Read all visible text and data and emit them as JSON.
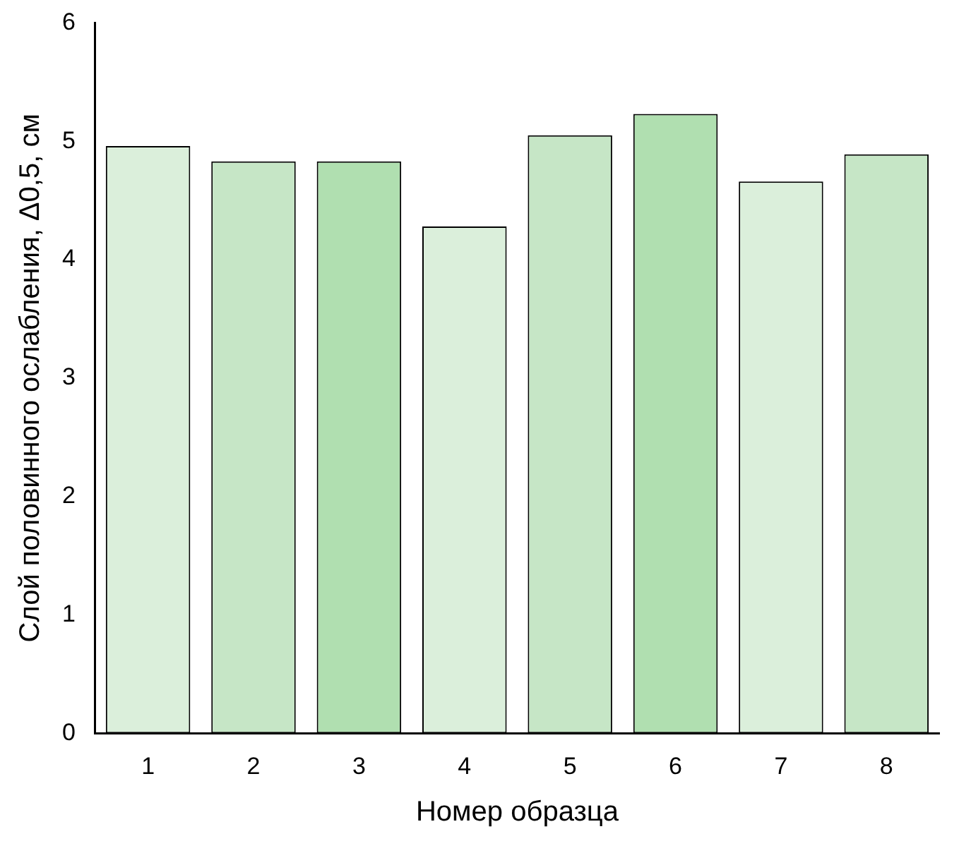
{
  "chart_data": {
    "type": "bar",
    "xlabel": "Номер образца",
    "ylabel": "Слой половинного ослабления, Δ0,5, см",
    "categories": [
      "1",
      "2",
      "3",
      "4",
      "5",
      "6",
      "7",
      "8"
    ],
    "values": [
      4.96,
      4.83,
      4.83,
      4.28,
      5.05,
      5.23,
      4.66,
      4.89
    ],
    "colors": [
      "#dbefdb",
      "#c6e6c6",
      "#b0dfb0",
      "#dbefdb",
      "#c6e6c6",
      "#b0dfb0",
      "#dbefdb",
      "#c6e6c6"
    ],
    "ylim": [
      0,
      6
    ],
    "yticks": [
      0,
      1,
      2,
      3,
      4,
      5,
      6
    ],
    "grid": false,
    "legend": false
  }
}
